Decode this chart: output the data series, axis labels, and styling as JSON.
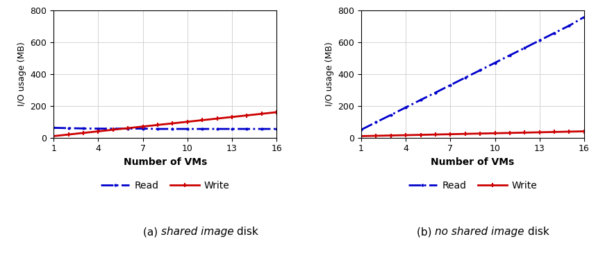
{
  "x_ticks": [
    1,
    4,
    7,
    10,
    13,
    16
  ],
  "subplot_a": {
    "read_x": [
      1,
      2,
      3,
      4,
      5,
      6,
      7,
      8,
      9,
      10,
      11,
      12,
      13,
      14,
      15,
      16
    ],
    "read_y": [
      62,
      60,
      58,
      57,
      57,
      57,
      57,
      55,
      55,
      55,
      55,
      55,
      55,
      55,
      55,
      55
    ],
    "write_x": [
      1,
      2,
      3,
      4,
      5,
      6,
      7,
      8,
      9,
      10,
      11,
      12,
      13,
      14,
      15,
      16
    ],
    "write_y": [
      10,
      20,
      30,
      40,
      50,
      60,
      70,
      80,
      90,
      100,
      110,
      120,
      130,
      140,
      150,
      160
    ]
  },
  "subplot_b": {
    "read_x": [
      1,
      2,
      3,
      4,
      5,
      6,
      7,
      8,
      9,
      10,
      11,
      12,
      13,
      14,
      15,
      16
    ],
    "read_y": [
      50,
      97,
      143,
      190,
      237,
      283,
      330,
      377,
      423,
      470,
      517,
      563,
      610,
      657,
      703,
      757
    ],
    "write_x": [
      1,
      2,
      3,
      4,
      5,
      6,
      7,
      8,
      9,
      10,
      11,
      12,
      13,
      14,
      15,
      16
    ],
    "write_y": [
      10,
      12,
      14,
      16,
      18,
      20,
      22,
      24,
      26,
      28,
      30,
      32,
      34,
      36,
      38,
      40
    ]
  },
  "ylabel": "I/O usage (MB)",
  "xlabel": "Number of VMs",
  "ylim": [
    0,
    800
  ],
  "yticks": [
    0,
    200,
    400,
    600,
    800
  ],
  "read_color": "#0000cc",
  "write_color": "#cc0000",
  "read_linewidth": 2.0,
  "write_linewidth": 2.0,
  "legend_read_label": "Read",
  "legend_write_label": "Write",
  "caption_a_prefix": "(a) ",
  "caption_a_italic": "shared image",
  "caption_a_suffix": " disk",
  "caption_b_prefix": "(b) ",
  "caption_b_italic": "no shared image",
  "caption_b_suffix": " disk",
  "figure_width": 8.58,
  "figure_height": 3.68
}
